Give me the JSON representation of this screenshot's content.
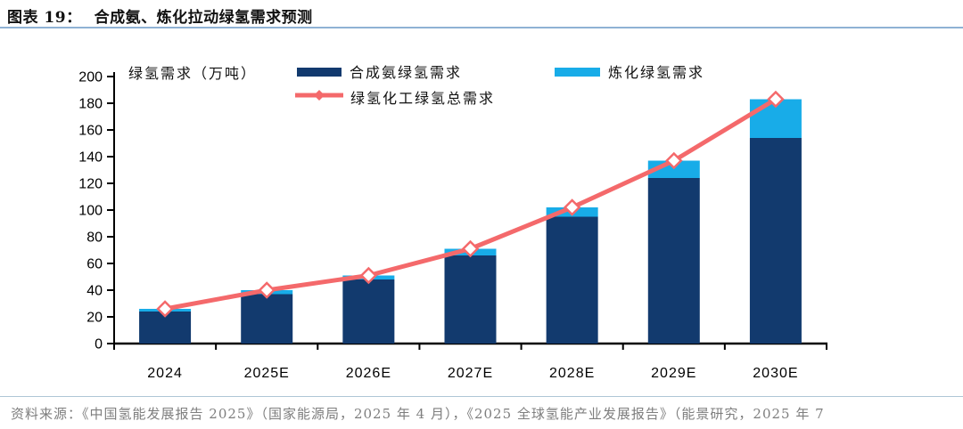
{
  "header": {
    "title_prefix": "图表 19：",
    "title": "合成氨、炼化拉动绿氢需求预测"
  },
  "chart": {
    "axis_unit_label": "绿氢需求（万吨）",
    "legend": {
      "ammonia": "合成氨绿氢需求",
      "refining": "炼化绿氢需求",
      "total_line": "绿氢化工绿氢总需求"
    }
  },
  "chart_data": {
    "type": "bar",
    "subtype": "stacked-bar-with-line",
    "categories": [
      "2024",
      "2025E",
      "2026E",
      "2027E",
      "2028E",
      "2029E",
      "2030E"
    ],
    "series": [
      {
        "name": "合成氨绿氢需求",
        "type": "bar",
        "color": "#123A6E",
        "values": [
          24,
          37,
          48,
          66,
          95,
          124,
          154
        ]
      },
      {
        "name": "炼化绿氢需求",
        "type": "bar",
        "color": "#18ACE8",
        "values": [
          2,
          3,
          3,
          5,
          7,
          13,
          29
        ]
      },
      {
        "name": "绿氢化工绿氢总需求",
        "type": "line",
        "color": "#F4696B",
        "marker": "open-diamond",
        "values": [
          26,
          40,
          51,
          71,
          102,
          137,
          183
        ]
      }
    ],
    "title": "合成氨、炼化拉动绿氢需求预测",
    "xlabel": "",
    "ylabel": "绿氢需求（万吨）",
    "ylim": [
      0,
      200
    ],
    "ytick_step": 20,
    "grid": false,
    "legend_position": "top-inside"
  },
  "colors": {
    "ammonia": "#123A6E",
    "refining": "#18ACE8",
    "line": "#F4696B",
    "axis": "#000000",
    "title_underline": "#8FB2D4",
    "footer_divider": "#AFC6D6",
    "source_text": "#7E7E7E"
  },
  "footer": {
    "source": "资料来源：《中国氢能发展报告 2025》（国家能源局，2025 年 4 月），《2025 全球氢能产业发展报告》（能景研究，2025 年 7"
  }
}
